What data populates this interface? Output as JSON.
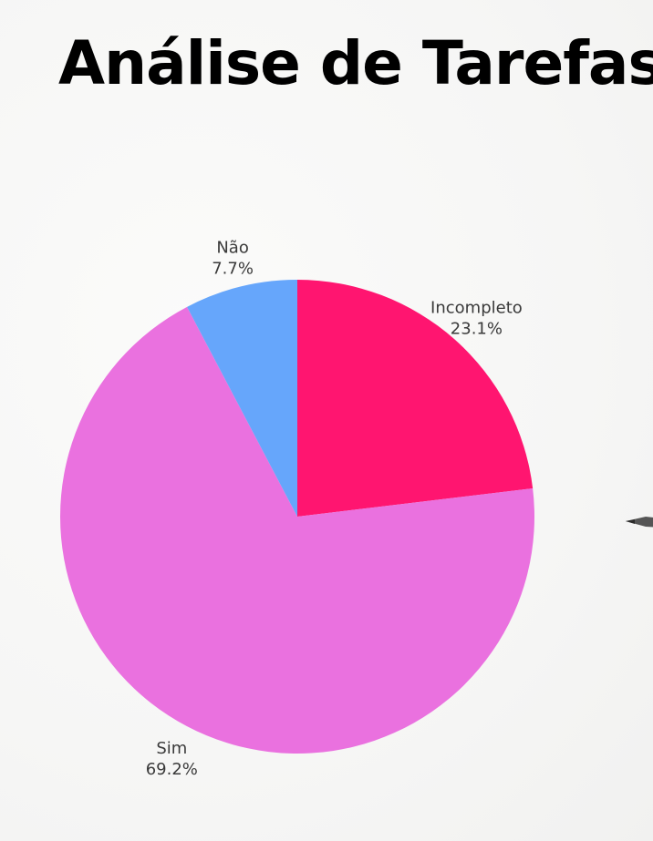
{
  "chart_data": {
    "type": "pie",
    "title": "Análise de Tarefas",
    "slices": [
      {
        "label": "Incompleto",
        "percent_label": "23.1%",
        "value": 23.1,
        "color": "#ff1570"
      },
      {
        "label": "Sim",
        "percent_label": "69.2%",
        "value": 69.2,
        "color": "#ea71df"
      },
      {
        "label": "Não",
        "percent_label": "7.7%",
        "value": 7.7,
        "color": "#66a6fb"
      }
    ],
    "start": "12 o'clock",
    "direction": "clockwise",
    "labels_outside": true
  }
}
